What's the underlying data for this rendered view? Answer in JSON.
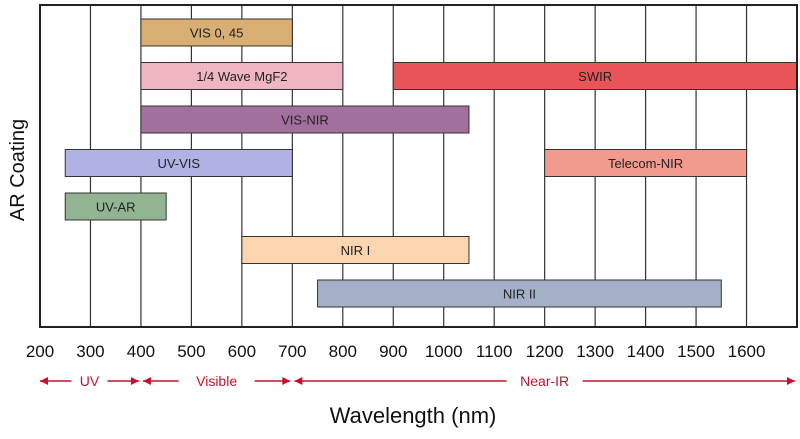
{
  "chart_data": {
    "type": "bar",
    "orientation": "horizontal-range",
    "xlabel": "Wavelength (nm)",
    "ylabel": "AR Coating",
    "xlim": [
      200,
      1700
    ],
    "x_ticks": [
      200,
      300,
      400,
      500,
      600,
      700,
      800,
      900,
      1000,
      1100,
      1200,
      1300,
      1400,
      1500,
      1600
    ],
    "grid": true,
    "bars": [
      {
        "name": "VIS 0, 45",
        "start": 400,
        "end": 700,
        "row": 0,
        "color": "#d9ae72"
      },
      {
        "name": "1/4 Wave MgF2",
        "start": 400,
        "end": 800,
        "row": 1,
        "color": "#efb6c1"
      },
      {
        "name": "SWIR",
        "start": 900,
        "end": 1700,
        "row": 1,
        "color": "#e85458"
      },
      {
        "name": "VIS-NIR",
        "start": 400,
        "end": 1050,
        "row": 2,
        "color": "#a1709f"
      },
      {
        "name": "UV-VIS",
        "start": 250,
        "end": 700,
        "row": 3,
        "color": "#b0b2e3"
      },
      {
        "name": "Telecom-NIR",
        "start": 1200,
        "end": 1600,
        "row": 3,
        "color": "#f09b8e"
      },
      {
        "name": "UV-AR",
        "start": 250,
        "end": 450,
        "row": 4,
        "color": "#93b492"
      },
      {
        "name": "NIR I",
        "start": 600,
        "end": 1050,
        "row": 5,
        "color": "#fbd4b0"
      },
      {
        "name": "NIR II",
        "start": 750,
        "end": 1550,
        "row": 6,
        "color": "#a4b0c7"
      }
    ],
    "regions": [
      {
        "name": "UV",
        "start": 200,
        "end": 400
      },
      {
        "name": "Visible",
        "start": 400,
        "end": 700
      },
      {
        "name": "Near-IR",
        "start": 700,
        "end": 1700
      }
    ],
    "region_color": "#c8102e"
  }
}
